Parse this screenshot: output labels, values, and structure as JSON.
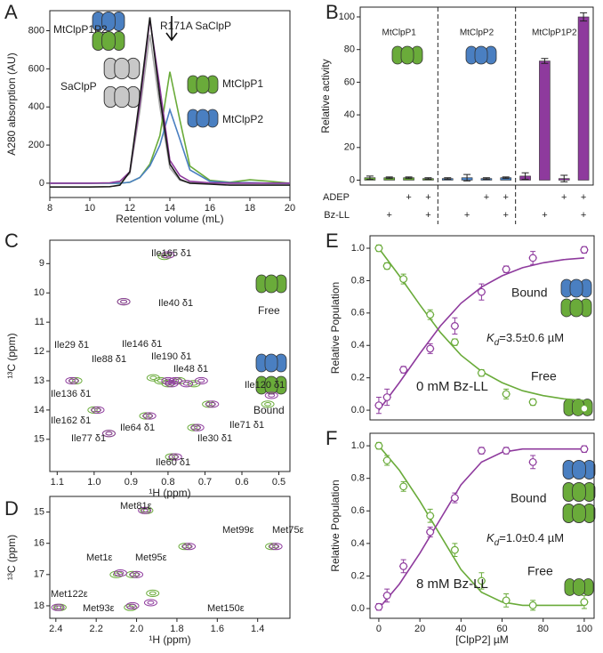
{
  "chart_data": [
    {
      "type": "line",
      "label": "A",
      "xlabel": "Retention volume (mL)",
      "ylabel": "A280 absorption (AU)",
      "xlim": [
        8,
        20
      ],
      "ylim": [
        -75,
        905
      ],
      "xticks": [
        8,
        10,
        12,
        14,
        16,
        18,
        20
      ],
      "yticks": [
        0,
        200,
        400,
        600,
        800
      ],
      "x": [
        8,
        9,
        10,
        11,
        11.5,
        12,
        12.5,
        13,
        13.5,
        14,
        14.5,
        15,
        16,
        17,
        18,
        19,
        20
      ],
      "series": [
        {
          "name": "SaClpP",
          "color": "#a9a9a9",
          "values": [
            0,
            0,
            0,
            2,
            8,
            50,
            380,
            780,
            400,
            80,
            15,
            2,
            0,
            0,
            0,
            0,
            0
          ]
        },
        {
          "name": "MtClpP1",
          "color": "#6aab3a",
          "values": [
            0,
            0,
            0,
            0,
            0,
            5,
            30,
            100,
            250,
            585,
            330,
            90,
            15,
            5,
            18,
            10,
            0
          ]
        },
        {
          "name": "MtClpP2",
          "color": "#4a7fc1",
          "values": [
            0,
            0,
            0,
            0,
            0,
            5,
            30,
            90,
            200,
            385,
            230,
            70,
            10,
            3,
            3,
            0,
            0
          ]
        },
        {
          "name": "MtClpP1P2",
          "color": "#8e3a9d",
          "values": [
            0,
            0,
            0,
            2,
            10,
            60,
            420,
            860,
            500,
            120,
            40,
            10,
            2,
            0,
            0,
            0,
            0
          ]
        },
        {
          "name": "R171A SaClpP",
          "color": "#1a1a1a",
          "values": [
            -20,
            -20,
            -20,
            -18,
            -10,
            60,
            450,
            870,
            450,
            100,
            20,
            0,
            -5,
            -10,
            -10,
            -10,
            -10
          ]
        }
      ]
    },
    {
      "type": "bar",
      "label": "B",
      "ylabel": "Relative activity",
      "ylim": [
        -3,
        106
      ],
      "yticks": [
        0,
        20,
        40,
        60,
        80,
        100
      ],
      "groups": [
        {
          "name": "MtClpP1",
          "color": "#6aab3a"
        },
        {
          "name": "MtClpP2",
          "color": "#4a7fc1"
        },
        {
          "name": "MtClpP1P2",
          "color": "#8e3a9d"
        }
      ],
      "values": [
        1.5,
        1.5,
        1.5,
        1,
        1,
        1.5,
        1,
        1.5,
        2.5,
        73,
        1,
        100
      ],
      "errors": [
        1,
        0.5,
        0.5,
        0.5,
        0.5,
        2,
        0.5,
        0.5,
        2,
        1.5,
        2,
        2.5
      ],
      "rows": [
        {
          "name": "ADEP",
          "values": [
            null,
            null,
            "+",
            "+",
            null,
            null,
            "+",
            "+",
            null,
            null,
            "+",
            "+"
          ]
        },
        {
          "name": "Bz-LL",
          "values": [
            null,
            "+",
            null,
            "+",
            null,
            "+",
            null,
            "+",
            null,
            "+",
            null,
            "+"
          ]
        }
      ]
    },
    {
      "type": "contour",
      "label": "C",
      "xlabel": "¹H (ppm)",
      "ylabel": "¹³C (ppm)",
      "xlim": [
        1.12,
        0.47
      ],
      "ylim": [
        16.1,
        8.2
      ],
      "xticks": [
        1.1,
        {
          "value": 1,
          "label": "1.0"
        },
        0.9,
        0.8,
        0.7,
        0.6,
        0.5
      ],
      "yticks": [
        9,
        10,
        11,
        12,
        13,
        14,
        15
      ],
      "peak_labels": [
        "Ile165 δ1",
        "Ile40 δ1",
        "Ile29 δ1",
        "Ile88 δ1",
        "Ile146 δ1",
        "Ile190 δ1",
        "Ile48 δ1",
        "Ile136 δ1",
        "Ile120 δ1",
        "Ile71 δ1",
        "Ile162 δ1",
        "Ile64 δ1",
        "Ile77 δ1",
        "Ile30 δ1",
        "Ile60 δ1"
      ],
      "series": [
        {
          "name": "Free",
          "color": "#6aab3a",
          "x": [
            0.81,
            0.92,
            0.84,
            0.82,
            0.8,
            0.77,
            0.73,
            1.05,
            0.53,
            0.69,
            1.0,
            0.86,
            0.96,
            0.73,
            0.79
          ],
          "y": [
            8.75,
            10.3,
            12.9,
            13.0,
            13.1,
            13.0,
            13.1,
            13.0,
            13.8,
            13.8,
            14.0,
            14.2,
            14.8,
            14.6,
            15.6
          ]
        },
        {
          "name": "Bound",
          "color": "#8e3a9d",
          "x": [
            0.8,
            0.92,
            0.8,
            0.79,
            0.78,
            0.75,
            0.71,
            1.06,
            0.52,
            0.68,
            0.99,
            0.85,
            0.96,
            0.72,
            0.78
          ],
          "y": [
            8.7,
            10.3,
            13.0,
            13.1,
            13.0,
            13.1,
            13.0,
            13.0,
            13.5,
            13.8,
            14.0,
            14.2,
            14.8,
            14.6,
            15.6
          ]
        }
      ]
    },
    {
      "type": "contour",
      "label": "D",
      "xlabel": "¹H (ppm)",
      "ylabel": "¹³C (ppm)",
      "xlim": [
        2.43,
        1.24
      ],
      "ylim": [
        18.4,
        14.5
      ],
      "xticks": [
        2.4,
        2.2,
        {
          "value": 2,
          "label": "2.0"
        },
        1.8,
        1.6,
        1.4
      ],
      "yticks": [
        15,
        16,
        17,
        18
      ],
      "peak_labels": [
        "Met81ε",
        "Met99ε",
        "Met75ε",
        "Met1ε",
        "Met95ε",
        "Met122ε",
        "Met93ε",
        "Met150ε"
      ],
      "series": [
        {
          "name": null,
          "color": "#6aab3a",
          "x": [
            1.95,
            1.76,
            1.33,
            2.1,
            2.02,
            2.38,
            2.03,
            1.92
          ],
          "y": [
            14.95,
            16.1,
            16.1,
            17.0,
            17.0,
            18.05,
            18.05,
            17.6
          ]
        },
        {
          "name": null,
          "color": "#8e3a9d",
          "x": [
            1.96,
            1.74,
            1.31,
            2.08,
            2.0,
            2.39,
            2.02,
            1.93
          ],
          "y": [
            14.95,
            16.1,
            16.1,
            16.95,
            17.0,
            18.05,
            18.0,
            17.9
          ]
        }
      ]
    },
    {
      "type": "scatter",
      "label": "E",
      "ylabel": "Relative Population",
      "xlim": [
        -4.3,
        104.8
      ],
      "ylim": [
        -0.06,
        1.077
      ],
      "yticks": [
        {
          "value": 0,
          "label": "0.0"
        },
        0.2,
        0.4,
        0.6,
        0.8,
        {
          "value": 1,
          "label": "1.0"
        }
      ],
      "kd": {
        "symbol": "K",
        "subscript": "d",
        "rest": "=3.5±0.6 µM"
      },
      "condition": "0 mM Bz-LL",
      "x": [
        0,
        4,
        12,
        25,
        37,
        50,
        62,
        75,
        100
      ],
      "xerr": [
        2,
        2,
        2,
        2,
        2,
        2,
        2,
        2,
        2
      ],
      "fit_x": [
        0,
        10,
        20,
        30,
        40,
        50,
        60,
        70,
        80,
        90,
        100
      ],
      "series": [
        {
          "name": "Free",
          "color": "#6aab3a",
          "values": [
            1.0,
            0.89,
            0.81,
            0.59,
            0.42,
            0.23,
            0.1,
            0.05,
            0.01
          ],
          "yerr": [
            0.02,
            0.02,
            0.03,
            0.03,
            0.02,
            0.02,
            0.03,
            0.02,
            0.02
          ],
          "fit": [
            1.0,
            0.83,
            0.65,
            0.48,
            0.34,
            0.24,
            0.17,
            0.12,
            0.09,
            0.07,
            0.06
          ]
        },
        {
          "name": "Bound",
          "color": "#8e3a9d",
          "values": [
            0.03,
            0.08,
            0.25,
            0.38,
            0.52,
            0.73,
            0.87,
            0.94,
            0.99
          ],
          "yerr": [
            0.05,
            0.05,
            0.02,
            0.03,
            0.05,
            0.05,
            0.02,
            0.04,
            0.02
          ],
          "fit": [
            0,
            0.17,
            0.35,
            0.52,
            0.66,
            0.76,
            0.83,
            0.88,
            0.91,
            0.93,
            0.94
          ]
        }
      ]
    },
    {
      "type": "scatter",
      "label": "F",
      "xlabel": "[ClpP2] µM",
      "ylabel": "Relative Population",
      "xlim": [
        -4.3,
        104.8
      ],
      "ylim": [
        -0.06,
        1.077
      ],
      "xticks": [
        0,
        20,
        40,
        60,
        80,
        100
      ],
      "yticks": [
        {
          "value": 0,
          "label": "0.0"
        },
        0.2,
        0.4,
        0.6,
        0.8,
        {
          "value": 1,
          "label": "1.0"
        }
      ],
      "kd": {
        "symbol": "K",
        "subscript": "d",
        "rest": "=1.0±0.4 µM"
      },
      "condition": "8 mM Bz-LL",
      "x": [
        0,
        4,
        12,
        25,
        37,
        50,
        62,
        75,
        100
      ],
      "xerr": [
        2,
        2,
        2,
        2,
        2,
        2,
        2,
        2,
        2
      ],
      "fit_x": [
        0,
        10,
        20,
        30,
        40,
        50,
        60,
        70,
        80,
        90,
        100
      ],
      "series": [
        {
          "name": "Free",
          "color": "#6aab3a",
          "values": [
            1.0,
            0.91,
            0.75,
            0.57,
            0.36,
            0.17,
            0.05,
            0.02,
            0.04
          ],
          "yerr": [
            0.02,
            0.03,
            0.03,
            0.04,
            0.04,
            0.05,
            0.04,
            0.03,
            0.04
          ],
          "fit": [
            1.0,
            0.85,
            0.66,
            0.45,
            0.24,
            0.1,
            0.04,
            0.02,
            0.02,
            0.02,
            0.02
          ]
        },
        {
          "name": "Bound",
          "color": "#8e3a9d",
          "values": [
            0.01,
            0.08,
            0.26,
            0.47,
            0.68,
            0.97,
            0.97,
            0.9,
            0.98
          ],
          "yerr": [
            0.02,
            0.04,
            0.04,
            0.03,
            0.03,
            0.02,
            0.02,
            0.04,
            0.02
          ],
          "fit": [
            0,
            0.15,
            0.34,
            0.55,
            0.76,
            0.9,
            0.96,
            0.98,
            0.98,
            0.98,
            0.98
          ]
        }
      ]
    }
  ]
}
